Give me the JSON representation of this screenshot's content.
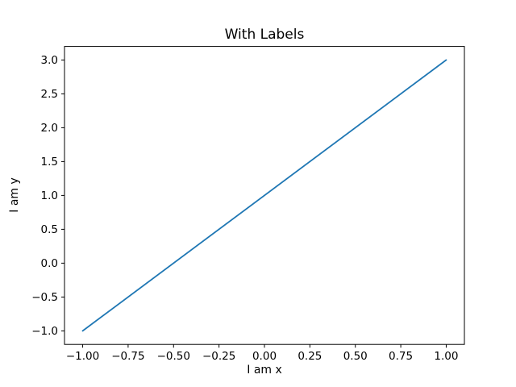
{
  "chart_data": {
    "type": "line",
    "title": "With Labels",
    "xlabel": "I am x",
    "ylabel": "I am y",
    "series": [
      {
        "name": "line",
        "x": [
          -1.0,
          1.0
        ],
        "y": [
          -1.0,
          3.0
        ],
        "color": "#1f77b4"
      }
    ],
    "xlim": [
      -1.1,
      1.1
    ],
    "ylim": [
      -1.2,
      3.2
    ],
    "xticks": [
      -1.0,
      -0.75,
      -0.5,
      -0.25,
      0.0,
      0.25,
      0.5,
      0.75,
      1.0
    ],
    "xtick_labels": [
      "−1.00",
      "−0.75",
      "−0.50",
      "−0.25",
      "0.00",
      "0.25",
      "0.50",
      "0.75",
      "1.00"
    ],
    "yticks": [
      -1.0,
      -0.5,
      0.0,
      0.5,
      1.0,
      1.5,
      2.0,
      2.5,
      3.0
    ],
    "ytick_labels": [
      "−1.0",
      "−0.5",
      "0.0",
      "0.5",
      "1.0",
      "1.5",
      "2.0",
      "2.5",
      "3.0"
    ],
    "grid": false,
    "legend": null,
    "spine_color": "#000000",
    "background": "#ffffff"
  }
}
